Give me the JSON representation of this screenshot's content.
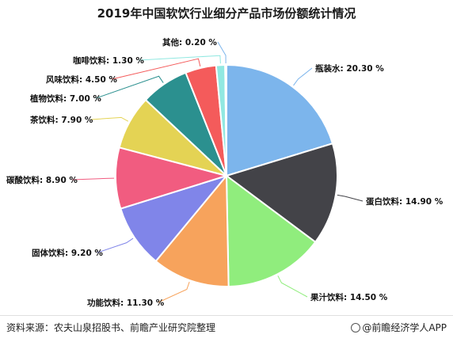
{
  "title": "2019年中国软饮行业细分产品市场份额统计情况",
  "footer": {
    "source": "资料来源：农夫山泉招股书、前瞻产业研究院整理",
    "brand": "@前瞻经济学人APP"
  },
  "chart_data": {
    "type": "pie",
    "title": "2019年中国软饮行业细分产品市场份额统计情况",
    "unit": "%",
    "slices": [
      {
        "label": "瓶装水",
        "value": 20.3,
        "display": "瓶装水: 20.30 %",
        "color": "#7cb5ec"
      },
      {
        "label": "蛋白饮料",
        "value": 14.9,
        "display": "蛋白饮料: 14.90 %",
        "color": "#434348"
      },
      {
        "label": "果汁饮料",
        "value": 14.5,
        "display": "果汁饮料: 14.50 %",
        "color": "#90ed7d"
      },
      {
        "label": "功能饮料",
        "value": 11.3,
        "display": "功能饮料: 11.30 %",
        "color": "#f7a35c"
      },
      {
        "label": "固体饮料",
        "value": 9.2,
        "display": "固体饮料: 9.20 %",
        "color": "#8085e9"
      },
      {
        "label": "碳酸饮料",
        "value": 8.9,
        "display": "碳酸饮料: 8.90 %",
        "color": "#f15c80"
      },
      {
        "label": "茶饮料",
        "value": 7.9,
        "display": "茶饮料: 7.90 %",
        "color": "#e4d354"
      },
      {
        "label": "植物饮料",
        "value": 7.0,
        "display": "植物饮料: 7.00 %",
        "color": "#2b908f"
      },
      {
        "label": "风味饮料",
        "value": 4.5,
        "display": "风味饮料: 4.50 %",
        "color": "#f45b5b"
      },
      {
        "label": "咖啡饮料",
        "value": 1.3,
        "display": "咖啡饮料: 1.30 %",
        "color": "#91e8e1"
      },
      {
        "label": "其他",
        "value": 0.2,
        "display": "其他: 0.20 %",
        "color": "#7cb5ec"
      }
    ]
  }
}
